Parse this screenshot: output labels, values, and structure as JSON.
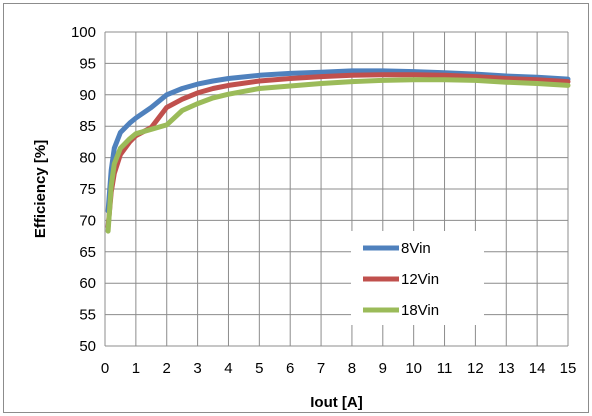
{
  "chart_data": {
    "type": "line",
    "title": "",
    "xlabel": "Iout [A]",
    "ylabel": "Efficiency [%]",
    "xlim": [
      0,
      15
    ],
    "ylim": [
      50,
      100
    ],
    "xticks": [
      0,
      1,
      2,
      3,
      4,
      5,
      6,
      7,
      8,
      9,
      10,
      11,
      12,
      13,
      14,
      15
    ],
    "yticks": [
      50,
      55,
      60,
      65,
      70,
      75,
      80,
      85,
      90,
      95,
      100
    ],
    "grid": true,
    "legend_position": "bottom-center-right",
    "series": [
      {
        "name": "8Vin",
        "color": "#4f81bd",
        "x": [
          0.1,
          0.2,
          0.3,
          0.5,
          0.8,
          1.0,
          1.5,
          2.0,
          2.5,
          3.0,
          3.5,
          4.0,
          5.0,
          6.0,
          7.0,
          8.0,
          9.0,
          10.0,
          11.0,
          12.0,
          13.0,
          14.0,
          15.0
        ],
        "y": [
          71.5,
          78,
          81.5,
          84,
          85.5,
          86.3,
          88,
          90,
          91,
          91.7,
          92.2,
          92.6,
          93.1,
          93.4,
          93.6,
          93.8,
          93.8,
          93.7,
          93.5,
          93.3,
          93.0,
          92.8,
          92.5
        ]
      },
      {
        "name": "12Vin",
        "color": "#c0504d",
        "x": [
          0.1,
          0.2,
          0.3,
          0.5,
          0.8,
          1.0,
          1.5,
          2.0,
          2.5,
          3.0,
          3.5,
          4.0,
          5.0,
          6.0,
          7.0,
          8.0,
          9.0,
          10.0,
          11.0,
          12.0,
          13.0,
          14.0,
          15.0
        ],
        "y": [
          69,
          74.5,
          77.5,
          80.5,
          82.5,
          83.5,
          84.8,
          88,
          89.3,
          90.3,
          91,
          91.5,
          92.2,
          92.6,
          92.9,
          93.1,
          93.2,
          93.2,
          93.1,
          92.9,
          92.6,
          92.4,
          92.1
        ]
      },
      {
        "name": "18Vin",
        "color": "#9bbb59",
        "x": [
          0.1,
          0.2,
          0.3,
          0.5,
          0.8,
          1.0,
          1.5,
          2.0,
          2.5,
          3.0,
          3.5,
          4.0,
          5.0,
          6.0,
          7.0,
          8.0,
          9.0,
          10.0,
          11.0,
          12.0,
          13.0,
          14.0,
          15.0
        ],
        "y": [
          68.3,
          75.5,
          79,
          81.5,
          83,
          83.8,
          84.5,
          85.2,
          87.5,
          88.6,
          89.5,
          90.1,
          91,
          91.4,
          91.8,
          92.1,
          92.3,
          92.4,
          92.4,
          92.3,
          92.0,
          91.8,
          91.5
        ]
      }
    ]
  }
}
